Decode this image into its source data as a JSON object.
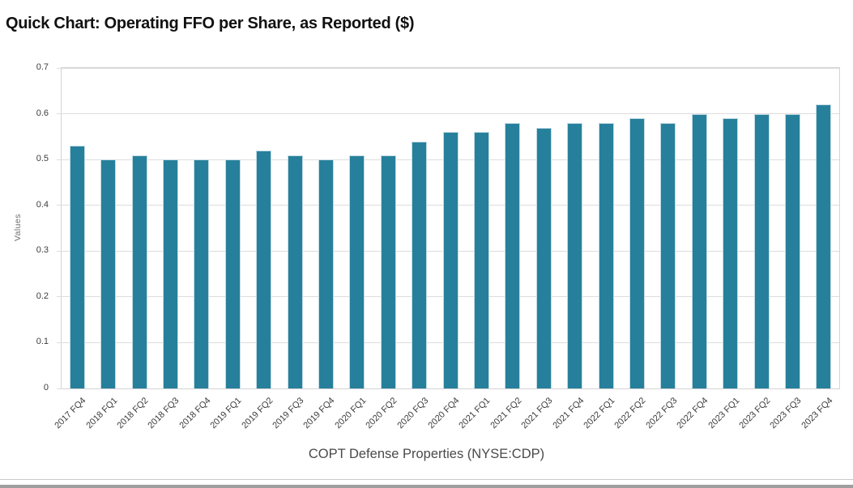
{
  "page": {
    "title": "Quick Chart: Operating FFO per Share, as Reported ($)",
    "caption": "COPT Defense Properties (NYSE:CDP)"
  },
  "colors": {
    "bar": "#27809B",
    "bar_border": "#C2DBE5",
    "grid": "#DDDDDD",
    "plot_border": "#D4D4D4",
    "divider": "#C9C9C9",
    "bottom_bar": "#9E9E9E"
  },
  "chart_data": {
    "type": "bar",
    "title": "Quick Chart: Operating FFO per Share, as Reported ($)",
    "xlabel": "COPT Defense Properties (NYSE:CDP)",
    "ylabel": "Values",
    "ylim": [
      0,
      0.7
    ],
    "ytick_interval": 0.1,
    "ytick_labels": [
      "0",
      "0.1",
      "0.2",
      "0.3",
      "0.4",
      "0.5",
      "0.6",
      "0.7"
    ],
    "grid": true,
    "legend": false,
    "categories": [
      "2017 FQ4",
      "2018 FQ1",
      "2018 FQ2",
      "2018 FQ3",
      "2018 FQ4",
      "2019 FQ1",
      "2019 FQ2",
      "2019 FQ3",
      "2019 FQ4",
      "2020 FQ1",
      "2020 FQ2",
      "2020 FQ3",
      "2020 FQ4",
      "2021 FQ1",
      "2021 FQ2",
      "2021 FQ3",
      "2021 FQ4",
      "2022 FQ1",
      "2022 FQ2",
      "2022 FQ3",
      "2022 FQ4",
      "2023 FQ1",
      "2023 FQ2",
      "2023 FQ3",
      "2023 FQ4"
    ],
    "values": [
      0.53,
      0.5,
      0.51,
      0.5,
      0.5,
      0.5,
      0.52,
      0.51,
      0.5,
      0.51,
      0.51,
      0.54,
      0.56,
      0.56,
      0.58,
      0.57,
      0.58,
      0.58,
      0.59,
      0.58,
      0.6,
      0.59,
      0.6,
      0.6,
      0.62
    ]
  }
}
